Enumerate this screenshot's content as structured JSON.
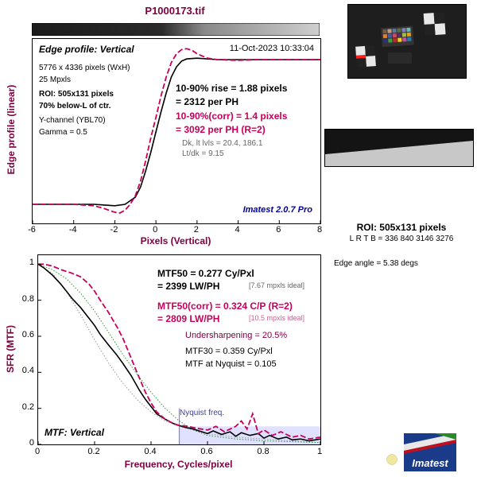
{
  "file_title": "P1000173.tif",
  "top_panel": {
    "title": "Edge profile: Vertical",
    "date": "11-Oct-2023 10:33:04",
    "size": "5776 x 4336 pixels (WxH)",
    "mpxls": "25 Mpxls",
    "roi": "ROI: 505x131 pixels",
    "below": "70% below-L of ctr.",
    "channel": "Y-channel  (YBL70)",
    "gamma": "Gamma = 0.5",
    "rise": "10-90% rise = 1.88 pixels",
    "rise_ph": "= 2312 per PH",
    "corr": "10-90%(corr) = 1.4 pixels",
    "corr_ph": "= 3092 per PH  (R=2)",
    "dk": "Dk, lt lvls = 20.4, 186.1",
    "ltdk": "Lt/dk = 9.15",
    "version": "Imatest 2.0.7 Pro",
    "ylabel": "Edge profile (linear)",
    "xlabel": "Pixels (Vertical)"
  },
  "bottom_panel": {
    "title": "MTF: Vertical",
    "mtf50": "MTF50 = 0.277 Cy/Pxl",
    "mtf50_lw": "= 2399 LW/PH",
    "mtf50_ideal": "[7.67 mpxls ideal]",
    "mtf50c": "MTF50(corr) = 0.324 C/P  (R=2)",
    "mtf50c_lw": "= 2809 LW/PH",
    "mtf50c_ideal": "[10.5 mpxls ideal]",
    "under": "Undersharpening = 20.5%",
    "mtf30": "MTF30 = 0.359 Cy/Pxl",
    "nyq": "MTF at Nyquist = 0.105",
    "nyq_label": "Nyquist freq.",
    "ylabel": "SFR (MTF)",
    "xlabel": "Frequency, Cycles/pixel"
  },
  "right": {
    "roi": "ROI: 505x131 pixels",
    "lrtb": "L R  T B = 336 840  3146 3276",
    "edge_angle": "Edge angle = 5.38 degs",
    "logo": "Imatest"
  },
  "colors": {
    "maroon": "#800040",
    "crimson": "#c8005a",
    "nyquist_fill": "#e0e0ff",
    "nyquist_line": "#8080ff"
  },
  "chart_data": [
    {
      "type": "line",
      "title": "Edge profile: Vertical",
      "xlabel": "Pixels (Vertical)",
      "ylabel": "Edge profile (linear)",
      "xlim": [
        -6,
        8
      ],
      "xticks": [
        -6,
        -4,
        -2,
        0,
        2,
        4,
        6,
        8
      ],
      "series": [
        {
          "color": "#000000",
          "style": "solid",
          "x": [
            -6,
            -4,
            -3,
            -2.5,
            -2,
            -1.5,
            -1,
            -0.75,
            -0.5,
            -0.25,
            0,
            0.25,
            0.5,
            0.75,
            1,
            1.25,
            1.5,
            2,
            2.5,
            3,
            4,
            5,
            6,
            7,
            8
          ],
          "y": [
            0.0,
            0.0,
            0.0,
            -0.005,
            -0.01,
            0.0,
            0.05,
            0.12,
            0.23,
            0.36,
            0.5,
            0.64,
            0.77,
            0.88,
            0.95,
            0.99,
            1.005,
            1.01,
            1.005,
            1.0,
            1.0,
            1.0,
            1.0,
            1.0,
            1.0
          ]
        },
        {
          "color": "#c8005a",
          "style": "dashed",
          "x": [
            -6,
            -4,
            -3,
            -2.5,
            -2,
            -1.75,
            -1.5,
            -1.25,
            -1,
            -0.75,
            -0.5,
            -0.25,
            0,
            0.25,
            0.5,
            0.75,
            1,
            1.25,
            1.5,
            1.75,
            2,
            2.5,
            3,
            4,
            5,
            6,
            7,
            8
          ],
          "y": [
            0.0,
            0.0,
            -0.01,
            -0.03,
            -0.055,
            -0.06,
            -0.04,
            0.0,
            0.06,
            0.16,
            0.3,
            0.46,
            0.6,
            0.75,
            0.88,
            0.98,
            1.04,
            1.07,
            1.075,
            1.065,
            1.04,
            1.01,
            1.0,
            0.995,
            1.0,
            1.0,
            1.0,
            1.0
          ]
        }
      ]
    },
    {
      "type": "line",
      "title": "MTF: Vertical",
      "xlabel": "Frequency, Cycles/pixel",
      "ylabel": "SFR (MTF)",
      "xlim": [
        0,
        1
      ],
      "ylim": [
        0,
        1.05
      ],
      "xticks": [
        0,
        0.2,
        0.4,
        0.6,
        0.8,
        1
      ],
      "yticks": [
        0,
        0.2,
        0.4,
        0.6,
        0.8,
        1
      ],
      "nyquist": 0.5,
      "series": [
        {
          "color": "#000000",
          "style": "solid",
          "x": [
            0,
            0.02,
            0.05,
            0.08,
            0.1,
            0.12,
            0.15,
            0.18,
            0.2,
            0.22,
            0.25,
            0.277,
            0.3,
            0.33,
            0.359,
            0.38,
            0.4,
            0.42,
            0.45,
            0.48,
            0.5,
            0.52,
            0.55,
            0.58,
            0.6,
            0.62,
            0.65,
            0.68,
            0.7,
            0.72,
            0.75,
            0.78,
            0.8,
            0.82,
            0.85,
            0.88,
            0.9,
            0.93,
            0.96,
            1.0
          ],
          "y": [
            1.0,
            0.98,
            0.94,
            0.89,
            0.85,
            0.81,
            0.76,
            0.7,
            0.66,
            0.61,
            0.55,
            0.5,
            0.45,
            0.38,
            0.3,
            0.25,
            0.21,
            0.17,
            0.14,
            0.115,
            0.105,
            0.095,
            0.085,
            0.07,
            0.06,
            0.075,
            0.055,
            0.07,
            0.045,
            0.065,
            0.05,
            0.06,
            0.035,
            0.05,
            0.03,
            0.04,
            0.025,
            0.03,
            0.02,
            0.03
          ]
        },
        {
          "color": "#c8005a",
          "style": "dashed",
          "x": [
            0,
            0.02,
            0.05,
            0.08,
            0.1,
            0.12,
            0.15,
            0.18,
            0.2,
            0.22,
            0.25,
            0.28,
            0.3,
            0.324,
            0.35,
            0.38,
            0.4,
            0.42,
            0.45,
            0.48,
            0.5,
            0.53,
            0.56,
            0.6,
            0.63,
            0.66,
            0.7,
            0.72,
            0.74,
            0.76,
            0.78,
            0.8,
            0.83,
            0.86,
            0.9,
            0.93,
            0.96,
            1.0
          ],
          "y": [
            1.0,
            1.0,
            0.99,
            0.97,
            0.96,
            0.95,
            0.93,
            0.89,
            0.85,
            0.8,
            0.73,
            0.65,
            0.59,
            0.5,
            0.4,
            0.29,
            0.23,
            0.18,
            0.14,
            0.115,
            0.105,
            0.1,
            0.09,
            0.08,
            0.1,
            0.07,
            0.1,
            0.13,
            0.085,
            0.17,
            0.06,
            0.08,
            0.05,
            0.07,
            0.04,
            0.05,
            0.03,
            0.04
          ]
        },
        {
          "color": "#339933",
          "style": "dotted",
          "x": [
            0,
            0.05,
            0.1,
            0.15,
            0.2,
            0.25,
            0.3,
            0.35,
            0.4,
            0.45,
            0.5,
            0.55,
            0.6,
            0.7,
            0.8,
            0.9,
            1.0
          ],
          "y": [
            1.0,
            0.97,
            0.92,
            0.84,
            0.74,
            0.62,
            0.5,
            0.39,
            0.29,
            0.2,
            0.13,
            0.08,
            0.05,
            0.03,
            0.02,
            0.015,
            0.01
          ]
        },
        {
          "color": "#999999",
          "style": "dotted",
          "x": [
            0,
            0.05,
            0.1,
            0.15,
            0.2,
            0.25,
            0.3,
            0.35,
            0.4,
            0.45,
            0.5,
            0.6,
            0.7,
            0.8,
            0.9,
            1.0
          ],
          "y": [
            1.0,
            0.95,
            0.85,
            0.72,
            0.58,
            0.45,
            0.34,
            0.25,
            0.18,
            0.13,
            0.1,
            0.06,
            0.04,
            0.03,
            0.02,
            0.01
          ]
        }
      ]
    }
  ]
}
